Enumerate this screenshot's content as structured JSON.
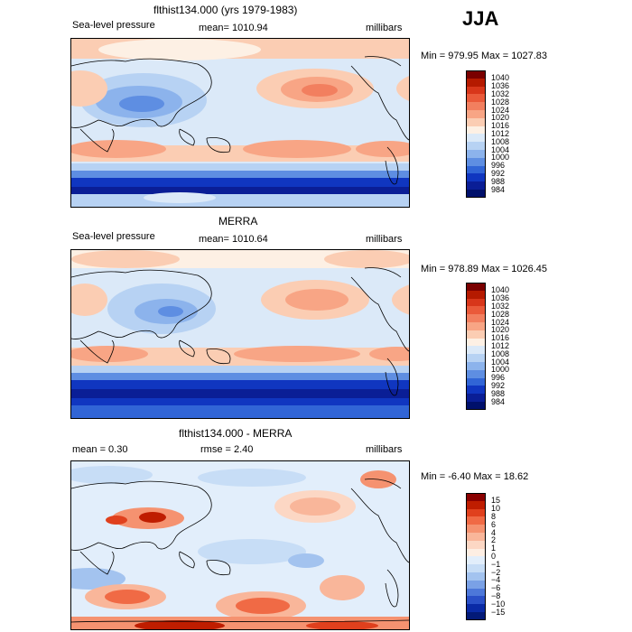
{
  "season": "JJA",
  "panels": [
    {
      "title": "flthist134.000 (yrs 1979-1983)",
      "left_label": "Sea-level pressure",
      "center_label": "mean= 1010.94",
      "right_label": "millibars",
      "minmax": "Min = 979.95 Max = 1027.83",
      "colorbar_labels": [
        "1040",
        "1036",
        "1032",
        "1028",
        "1024",
        "1020",
        "1016",
        "1012",
        "1008",
        "1004",
        "1000",
        "996",
        "992",
        "988",
        "984"
      ]
    },
    {
      "title": "MERRA",
      "left_label": "Sea-level pressure",
      "center_label": "mean= 1010.64",
      "right_label": "millibars",
      "minmax": "Min = 978.89 Max = 1026.45",
      "colorbar_labels": [
        "1040",
        "1036",
        "1032",
        "1028",
        "1024",
        "1020",
        "1016",
        "1012",
        "1008",
        "1004",
        "1000",
        "996",
        "992",
        "988",
        "984"
      ]
    },
    {
      "title": "flthist134.000 - MERRA",
      "left_label": "mean =    0.30",
      "center_label": "rmse =    2.40",
      "right_label": "millibars",
      "minmax": "Min =  -6.40 Max =  18.62",
      "colorbar_labels": [
        "15",
        "10",
        "8",
        "6",
        "4",
        "2",
        "1",
        "0",
        "−1",
        "−2",
        "−4",
        "−6",
        "−8",
        "−10",
        "−15"
      ]
    }
  ],
  "colors": {
    "abs_scale": [
      "#7a0000",
      "#b51a00",
      "#d8361a",
      "#ea5a3a",
      "#f27f5f",
      "#f8a585",
      "#fbcdb3",
      "#fdf0e4",
      "#dbe9f8",
      "#b7d2f3",
      "#8cb3ec",
      "#5e8ee2",
      "#3165d6",
      "#1036c0",
      "#0a1e96",
      "#00106b"
    ],
    "diff_scale": [
      "#8a0000",
      "#bf1d00",
      "#e0401d",
      "#f06a45",
      "#f59270",
      "#f9b69a",
      "#fcd7c4",
      "#fdeee3",
      "#e2eefb",
      "#c7ddf6",
      "#a3c3ef",
      "#7aa1e6",
      "#4d78d9",
      "#2a50c7",
      "#0a2aa6",
      "#031a78"
    ]
  }
}
